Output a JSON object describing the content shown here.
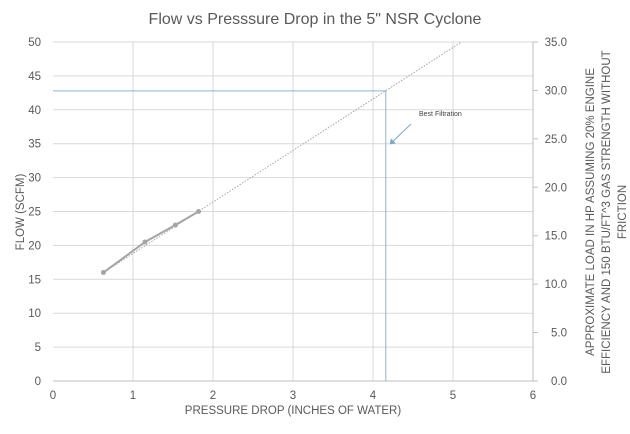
{
  "chart_data": {
    "type": "line",
    "title": "Flow vs Presssure Drop in the 5\" NSR Cyclone",
    "xlabel": "PRESSURE DROP (INCHES OF WATER)",
    "ylabel": "FLOW (SCFM)",
    "y2label_lines": [
      "APPROXIMATE LOAD IN HP ASSUMING 20% ENGINE",
      "EFFICIENCY AND 150 BTU/FT^3 GAS STRENGTH WITHOUT",
      "FRICTION"
    ],
    "xlim": [
      0,
      6
    ],
    "ylim": [
      0,
      50
    ],
    "y2lim": [
      0,
      35
    ],
    "xticks": [
      "0",
      "1",
      "2",
      "3",
      "4",
      "5",
      "6"
    ],
    "yticks": [
      "0",
      "5",
      "10",
      "15",
      "20",
      "25",
      "30",
      "35",
      "40",
      "45",
      "50"
    ],
    "y2ticks": [
      "0.0",
      "5.0",
      "10.0",
      "15.0",
      "20.0",
      "25.0",
      "30.0",
      "35.0"
    ],
    "grid": true,
    "series": [
      {
        "x": [
          0.63,
          1.15,
          1.53,
          1.82
        ],
        "y": [
          16,
          20.5,
          23,
          25
        ],
        "color": "#a5a5a5"
      }
    ],
    "trendline": {
      "type": "linear",
      "slope": 7.6,
      "intercept": 11.2,
      "x_start": 0.63,
      "color": "#a5a5a5"
    },
    "reference_lines": {
      "x": 4.16,
      "y": 42.8,
      "color": "#8eb4d8"
    },
    "annotation": {
      "text": "Best Filtration",
      "arrow_to": [
        4.21,
        34.9
      ],
      "color": "#7aa6d0"
    }
  }
}
